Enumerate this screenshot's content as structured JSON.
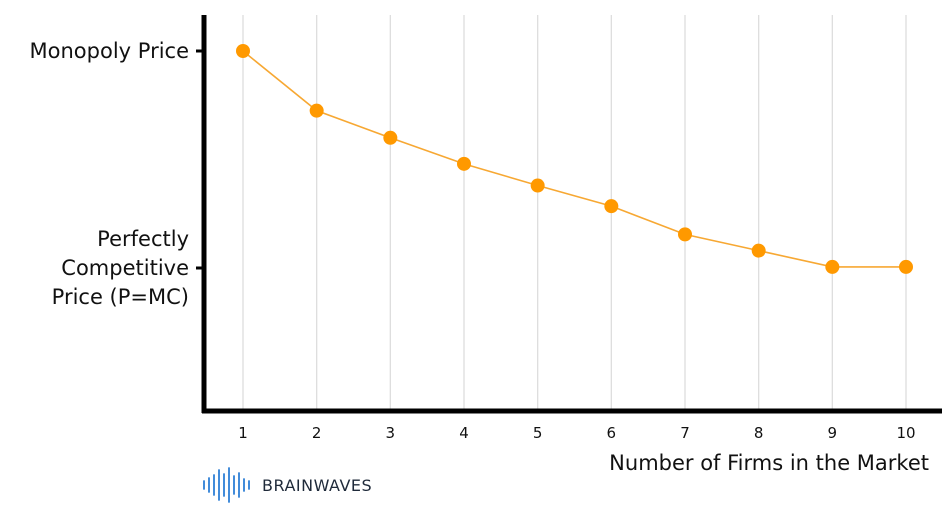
{
  "chart_data": {
    "type": "line",
    "x": [
      1,
      2,
      3,
      4,
      5,
      6,
      7,
      8,
      9,
      10
    ],
    "categories": [
      "1",
      "2",
      "3",
      "4",
      "5",
      "6",
      "7",
      "8",
      "9",
      "10"
    ],
    "series": [
      {
        "values": [
          1.0,
          0.725,
          0.6,
          0.48,
          0.38,
          0.285,
          0.155,
          0.08,
          0.005,
          0.005
        ]
      }
    ],
    "y_ticks": [
      {
        "value": 1.0,
        "label": "Monopoly Price"
      },
      {
        "value": 0.0,
        "label": "Perfectly Competitive Price (P=MC)",
        "lines": [
          "Perfectly",
          "Competitive",
          "Price (P=MC)"
        ]
      }
    ],
    "xlabel": "Number of Firms in the Market",
    "ylabel": "",
    "ylim": [
      -0.64,
      1.16
    ],
    "xlim": [
      0.5,
      10.5
    ],
    "grid": "vertical",
    "colors": {
      "line": "#f7a833",
      "marker": "#ff9900",
      "grid": "#dddddd",
      "axis": "#000000"
    }
  },
  "branding": {
    "logo_text": "BRAINWAVES",
    "icon": "sound-wave-icon",
    "color": "#2e7fd6"
  }
}
